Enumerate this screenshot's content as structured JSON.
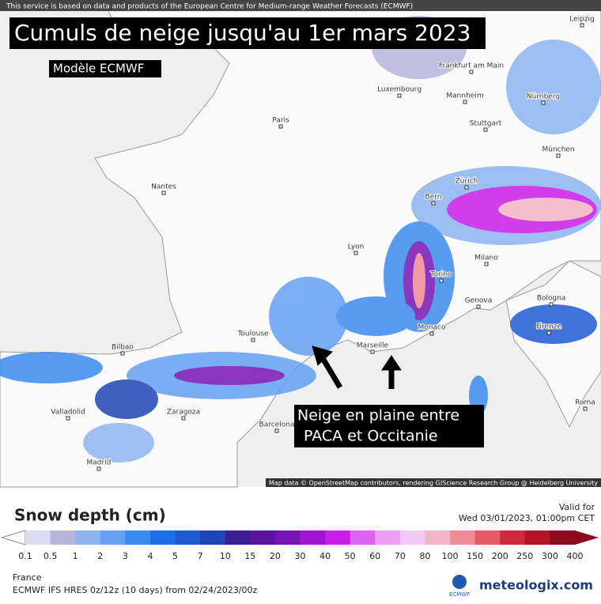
{
  "header": {
    "notice": "This service is based on data and products of the European Centre for Medium-range Weather Forecasts (ECMWF)",
    "title": "Cumuls de neige jusqu'au 1er mars 2023",
    "subtitle": "Modèle ECMWF"
  },
  "map": {
    "cities": [
      "Leipzig",
      "Frankfurt am Main",
      "Luxembourg",
      "Mannheim",
      "Nürnberg",
      "Paris",
      "Stuttgart",
      "München",
      "Nantes",
      "Zürich",
      "Bern",
      "Lyon",
      "Milano",
      "Torino",
      "Genova",
      "Bologna",
      "Toulouse",
      "Monaco",
      "Marseille",
      "Firenze",
      "Bilbao",
      "Zaragoza",
      "Valladolid",
      "Barcelona",
      "Roma",
      "Madrid"
    ],
    "annotation": [
      "Neige en plaine entre",
      "PACA et Occitanie"
    ],
    "attribution": "Map data © OpenStreetMap contributors, rendering GIScience Research Group @ Heidelberg University"
  },
  "legend": {
    "title": "Snow depth (cm)",
    "valid_label": "Valid for",
    "valid_time": "Wed 03/01/2023, 01:00pm CET",
    "ticks": [
      0.1,
      0.5,
      1,
      2,
      3,
      4,
      5,
      7,
      10,
      15,
      20,
      30,
      40,
      50,
      60,
      70,
      80,
      100,
      150,
      200,
      250,
      300,
      400
    ],
    "colors": [
      "#dcdcf4",
      "#b4b4dc",
      "#8cb4f0",
      "#64a0f0",
      "#3c8cf0",
      "#1e6ee6",
      "#1e5ad2",
      "#1e46b4",
      "#3c1e96",
      "#5a14a0",
      "#7814b4",
      "#a014d2",
      "#c81ee6",
      "#dc64f0",
      "#eca0f4",
      "#f4c8f4",
      "#f4b4c8",
      "#f08c96",
      "#e65a64",
      "#d2283c",
      "#b41428",
      "#8c0a1e"
    ]
  },
  "footer": {
    "region": "France",
    "model": "ECMWF IFS HRES 0z/12z (10 days) from 02/24/2023/00z",
    "ecmwf": "ECMWF",
    "brand": "meteologix.com"
  }
}
